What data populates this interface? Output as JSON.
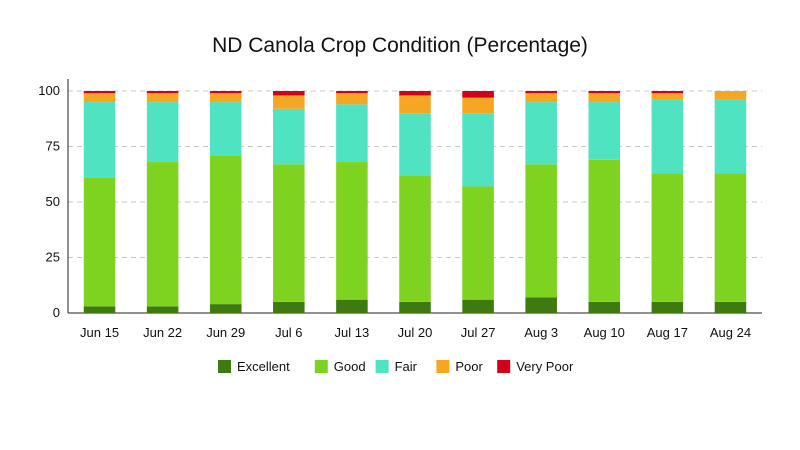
{
  "chart_data": {
    "type": "bar",
    "stacked": true,
    "title": "ND Canola Crop Condition (Percentage)",
    "xlabel": "",
    "ylabel": "",
    "ylim": [
      0,
      100
    ],
    "yticks": [
      0,
      25,
      50,
      75,
      100
    ],
    "grid": "horizontal-dashed",
    "legend": "bottom",
    "categories": [
      "Jun 15",
      "Jun 22",
      "Jun 29",
      "Jul 6",
      "Jul 13",
      "Jul 20",
      "Jul 27",
      "Aug 3",
      "Aug 10",
      "Aug 17",
      "Aug 24"
    ],
    "series": [
      {
        "name": "Excellent",
        "color": "#3f7a10",
        "values": [
          3,
          3,
          4,
          5,
          6,
          5,
          6,
          7,
          5,
          5,
          5
        ]
      },
      {
        "name": "Good",
        "color": "#7ed321",
        "values": [
          58,
          65,
          67,
          62,
          62,
          57,
          51,
          60,
          64,
          58,
          58
        ]
      },
      {
        "name": "Fair",
        "color": "#50e3c2",
        "values": [
          34,
          27,
          24,
          25,
          26,
          28,
          33,
          28,
          26,
          33,
          33
        ]
      },
      {
        "name": "Poor",
        "color": "#f5a623",
        "values": [
          4,
          4,
          4,
          6,
          5,
          8,
          7,
          4,
          4,
          3,
          4
        ]
      },
      {
        "name": "Very Poor",
        "color": "#d0021b",
        "values": [
          1,
          1,
          1,
          2,
          1,
          2,
          3,
          1,
          1,
          1,
          0
        ]
      }
    ]
  }
}
